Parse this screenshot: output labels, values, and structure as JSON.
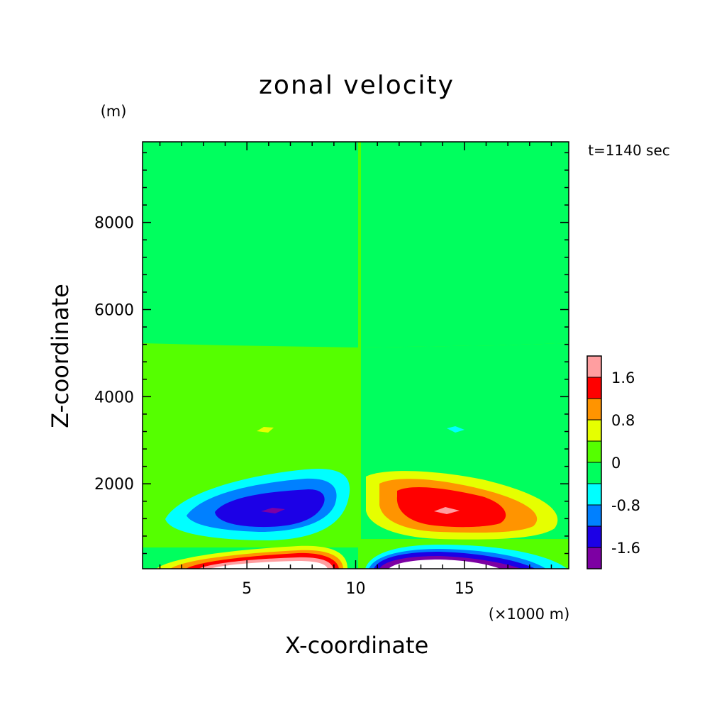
{
  "chart_data": {
    "type": "heatmap",
    "title": "zonal velocity",
    "xlabel": "X-coordinate",
    "ylabel": "Z-coordinate",
    "x_unit": "(×1000 m)",
    "y_unit": "(m)",
    "time_label": "t=1140 sec",
    "xlim": [
      0.2,
      19.8
    ],
    "ylim": [
      50,
      9850
    ],
    "x_ticks": [
      5,
      10,
      15
    ],
    "x_tick_labels": [
      "5",
      "10",
      "15"
    ],
    "y_ticks": [
      2000,
      4000,
      6000,
      8000
    ],
    "y_tick_labels": [
      "2000",
      "4000",
      "6000",
      "8000"
    ],
    "colorbar": {
      "levels": [
        -2.0,
        -1.6,
        -1.2,
        -0.8,
        -0.4,
        0,
        0.4,
        0.8,
        1.2,
        1.6,
        2.0
      ],
      "colors": [
        "#7d00a3",
        "#1c00e6",
        "#0080ff",
        "#00ffff",
        "#00ff5e",
        "#55ff00",
        "#e6ff00",
        "#ff9400",
        "#ff0000",
        "#ff9ea0"
      ],
      "tick_labels": [
        "1.6",
        "0.8",
        "0",
        "-0.8",
        "-1.6"
      ],
      "tick_values": [
        1.6,
        0.8,
        0,
        -0.8,
        -1.6
      ]
    },
    "colors": {
      "background_field": "#00ff5e",
      "above": "#ffffff",
      "below": "#ffffff"
    },
    "features": [
      {
        "name": "negative-core-left-mid",
        "center_x": 6.3,
        "center_z": 1400,
        "min_value": -2.0
      },
      {
        "name": "positive-core-right-mid",
        "center_x": 14.0,
        "center_z": 1400,
        "max_value": 2.0
      },
      {
        "name": "positive-jet-left-surface",
        "center_x": 6.5,
        "center_z": 100,
        "max_value": 2.0
      },
      {
        "name": "negative-jet-right-surface",
        "center_x": 14.0,
        "center_z": 100,
        "min_value": -2.0
      },
      {
        "name": "small-positive-patch",
        "center_x": 5.8,
        "center_z": 3300
      },
      {
        "name": "small-negative-patch",
        "center_x": 14.3,
        "center_z": 3300
      }
    ]
  }
}
